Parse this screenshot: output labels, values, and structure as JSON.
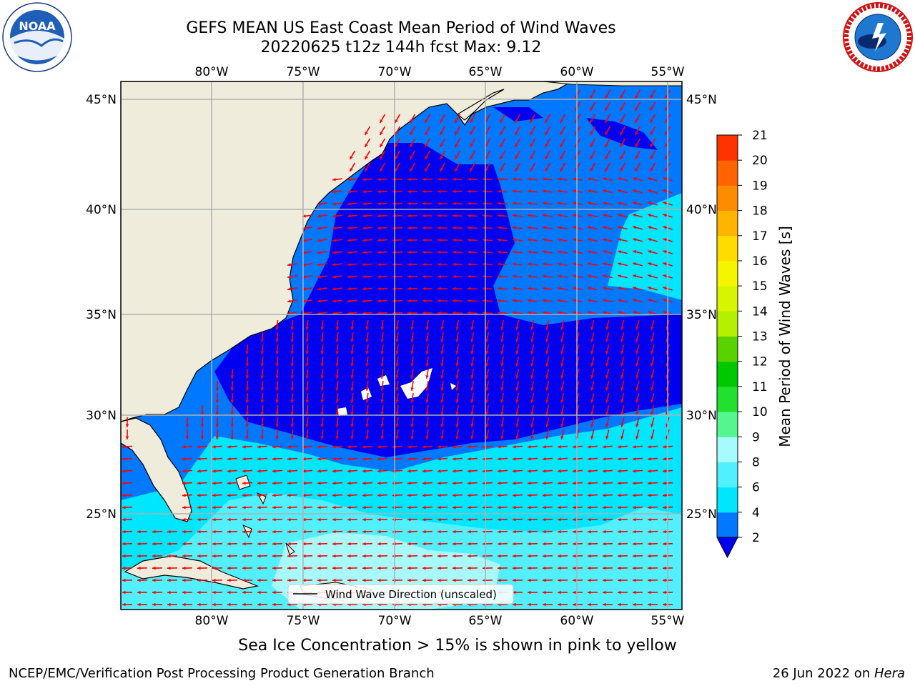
{
  "header": {
    "title_line1": "GEFS MEAN US East Coast Mean Period of Wind Waves",
    "title_line2": "20220625 t12z 144h fcst   Max: 9.12"
  },
  "logos": {
    "left": "NOAA",
    "left_ring_text": "NATIONAL OCEANIC AND ATMOSPHERIC ADMINISTRATION · U.S. DEPARTMENT OF COMMERCE",
    "right_ring_text": "NATIONAL WEATHER SERVICE"
  },
  "map": {
    "lon_labels": [
      "80°W",
      "75°W",
      "70°W",
      "65°W",
      "60°W",
      "55°W"
    ],
    "lat_labels": [
      "45°N",
      "40°N",
      "35°N",
      "30°N",
      "25°N"
    ],
    "legend_label": "Wind Wave Direction (unscaled)",
    "colors": {
      "land": "#efecdc",
      "level_2_4": "#0078ff",
      "below_2": "#0000f0",
      "level_4_6": "#00e6ff",
      "level_6_8": "#50f0ff",
      "level_8_9": "#a6fbff",
      "arrow": "#ff0000"
    }
  },
  "colorbar": {
    "label": "Mean Period of Wind Waves [s]",
    "ticks": [
      "2",
      "4",
      "6",
      "8",
      "9",
      "10",
      "11",
      "12",
      "13",
      "14",
      "15",
      "16",
      "17",
      "18",
      "19",
      "20",
      "21"
    ],
    "colors": [
      "#0078ff",
      "#00e6ff",
      "#50f0ff",
      "#a6fbff",
      "#55f590",
      "#22e030",
      "#00c800",
      "#5ad200",
      "#b4f000",
      "#d7f500",
      "#f5f500",
      "#ffdc00",
      "#ffb400",
      "#ff8c00",
      "#ff6400",
      "#ff3200",
      "#ff0000"
    ],
    "under_color": "#0000f0"
  },
  "footer": {
    "sea_ice_note": "Sea Ice Concentration > 15% is shown in pink to yellow",
    "credit": "NCEP/EMC/Verification Post Processing Product Generation Branch",
    "date": "26 Jun 2022 on ",
    "machine": "Hera"
  }
}
